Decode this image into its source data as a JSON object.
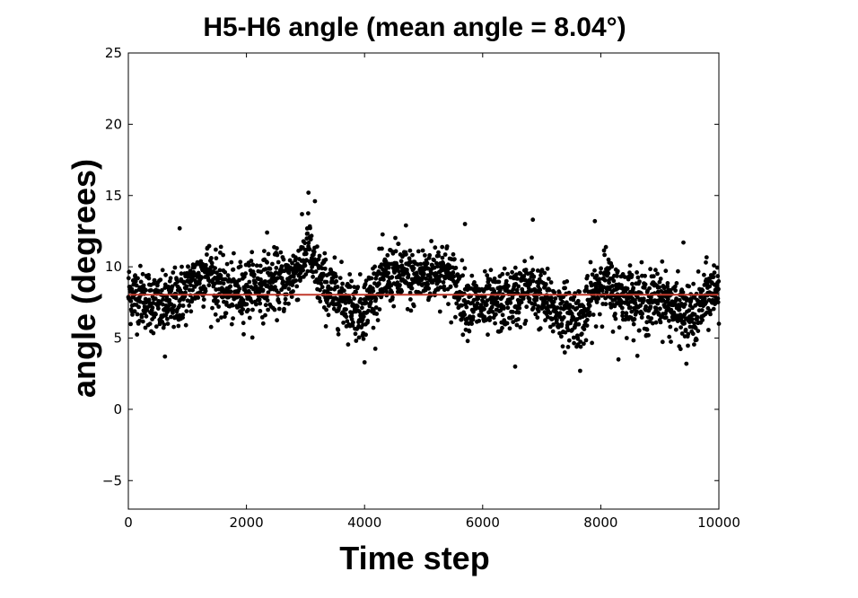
{
  "chart_data": {
    "type": "scatter",
    "title": "H5-H6 angle (mean angle = 8.04°)",
    "xlabel": "Time step",
    "ylabel": "angle (degrees)",
    "xlim": [
      0,
      10000
    ],
    "ylim": [
      -7,
      25
    ],
    "xticks": [
      0,
      2000,
      4000,
      6000,
      8000,
      10000
    ],
    "xtick_labels": [
      "0",
      "2000",
      "4000",
      "6000",
      "8000",
      "10000"
    ],
    "yticks": [
      -5,
      0,
      5,
      10,
      15,
      20,
      25
    ],
    "ytick_labels": [
      "−5",
      "0",
      "5",
      "10",
      "15",
      "20",
      "25"
    ],
    "grid": false,
    "point_color": "#000000",
    "mean_line": {
      "y": 8.04,
      "color": "#c0392b"
    },
    "series": [
      {
        "trend": {
          "x": [
            0,
            300,
            600,
            900,
            1200,
            1350,
            1500,
            1800,
            2100,
            2400,
            2700,
            2950,
            3050,
            3150,
            3400,
            3700,
            3950,
            4200,
            4500,
            4800,
            5100,
            5300,
            5500,
            5700,
            6000,
            6300,
            6600,
            6800,
            7000,
            7300,
            7600,
            7700,
            7850,
            8050,
            8200,
            8500,
            8800,
            9000,
            9300,
            9600,
            9800,
            10000
          ],
          "y": [
            8.2,
            7.8,
            7.1,
            8.0,
            9.2,
            9.8,
            8.7,
            8.0,
            8.6,
            8.9,
            9.0,
            10.3,
            11.6,
            9.7,
            8.3,
            7.6,
            6.9,
            8.6,
            9.6,
            9.1,
            9.5,
            9.9,
            9.0,
            7.6,
            7.2,
            7.4,
            8.0,
            8.5,
            7.8,
            6.8,
            6.6,
            6.3,
            7.8,
            9.3,
            8.2,
            7.9,
            7.4,
            8.0,
            6.8,
            6.4,
            8.0,
            8.6
          ]
        },
        "noise_sd": 1.05,
        "n_points": 2500,
        "outliers": [
          [
            3050,
            15.2
          ],
          [
            3160,
            14.6
          ],
          [
            5700,
            13.0
          ],
          [
            6850,
            13.3
          ],
          [
            7900,
            13.2
          ],
          [
            4700,
            12.9
          ],
          [
            2350,
            12.4
          ],
          [
            870,
            12.7
          ],
          [
            9400,
            11.7
          ],
          [
            4000,
            3.3
          ],
          [
            7650,
            2.7
          ],
          [
            9450,
            3.2
          ],
          [
            6550,
            3.0
          ],
          [
            620,
            3.7
          ],
          [
            8300,
            3.5
          ]
        ]
      }
    ]
  }
}
